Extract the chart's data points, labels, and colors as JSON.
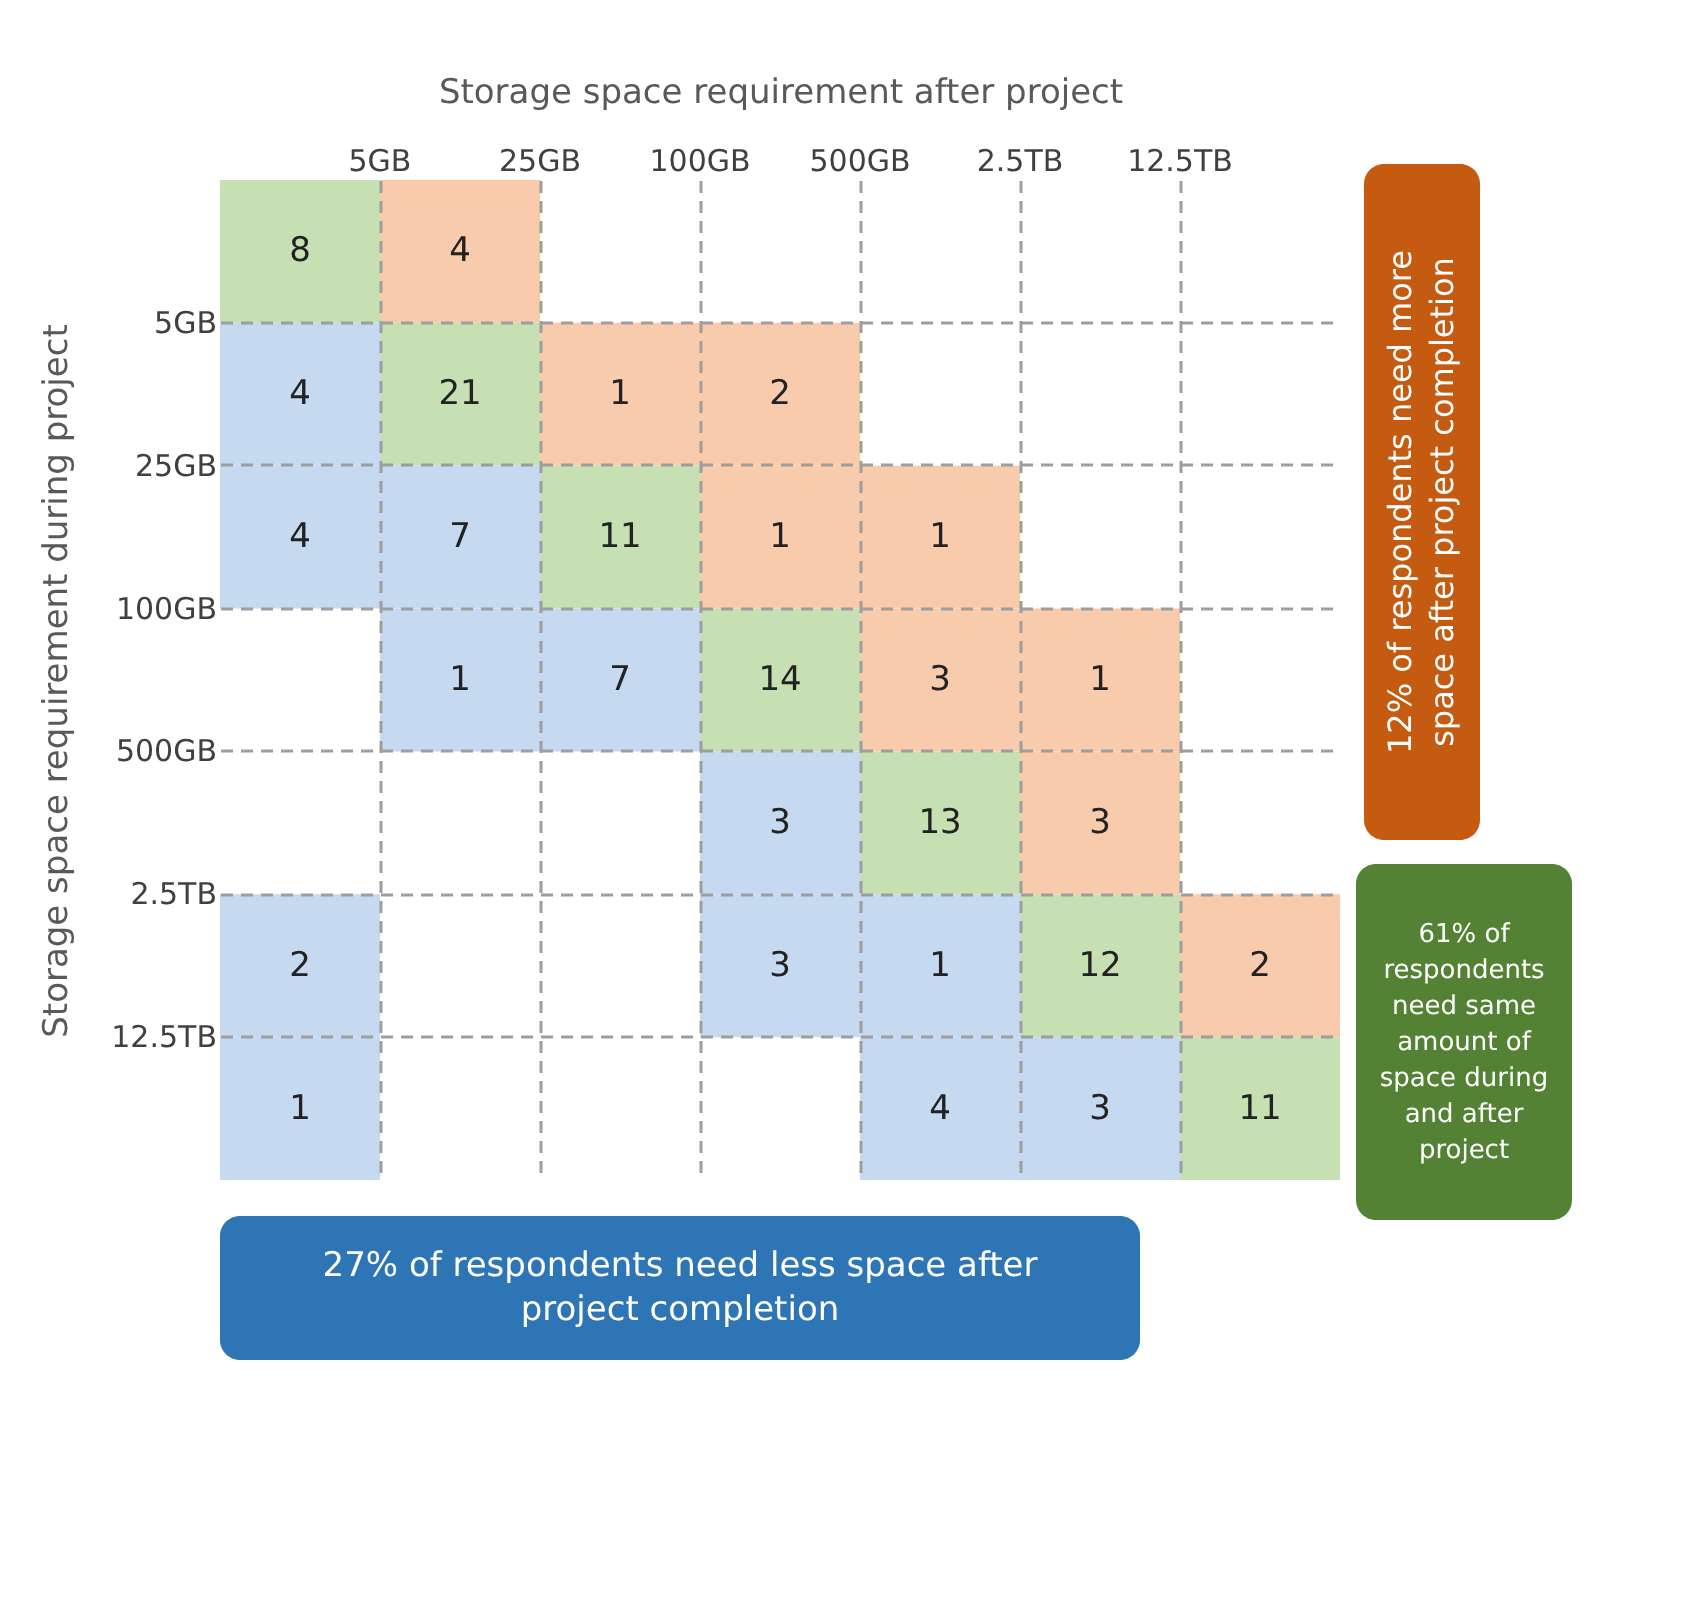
{
  "chart_data": {
    "type": "heatmap",
    "xlabel": "Storage space requirement after project",
    "ylabel": "Storage space requirement during project",
    "categories": [
      null,
      "5GB",
      "25GB",
      "100GB",
      "500GB",
      "2.5TB",
      "12.5TB"
    ],
    "y_categories": [
      null,
      "5GB",
      "25GB",
      "100GB",
      "500GB",
      "2.5TB",
      "12.5TB"
    ],
    "cells": [
      [
        8,
        4,
        null,
        null,
        null,
        null,
        null
      ],
      [
        4,
        21,
        1,
        2,
        null,
        null,
        null
      ],
      [
        4,
        7,
        11,
        1,
        1,
        null,
        null
      ],
      [
        null,
        1,
        7,
        14,
        3,
        1,
        null
      ],
      [
        null,
        null,
        null,
        3,
        13,
        3,
        null
      ],
      [
        2,
        null,
        null,
        3,
        1,
        12,
        2
      ],
      [
        1,
        null,
        null,
        null,
        4,
        3,
        11
      ]
    ],
    "colors": [
      "#c5d9f0",
      "#c6e0b4",
      "#f8cbad"
    ],
    "data_labels": true,
    "grid": true,
    "annotations": [
      "12% of respondents need more space after project completion",
      "27% of respondents need less space after project completion",
      "61% of respondents need same amount of space during and after project"
    ]
  }
}
